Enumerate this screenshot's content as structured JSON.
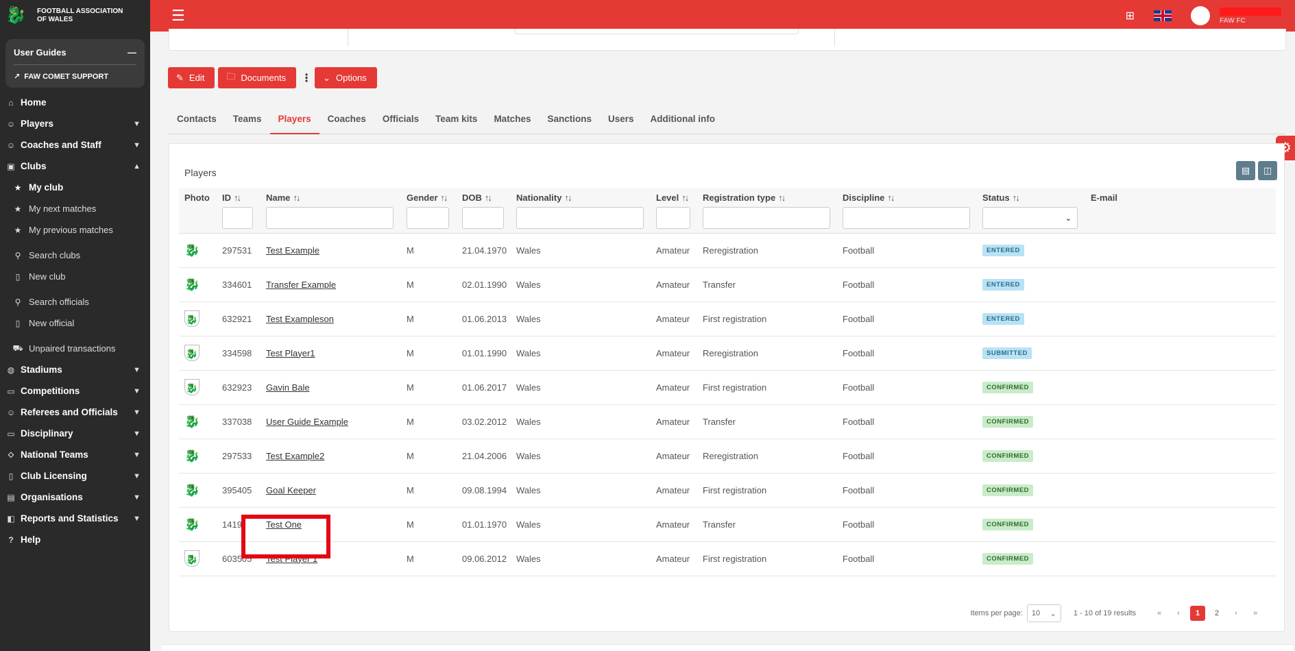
{
  "brand": {
    "name": "FOOTBALL ASSOCIATION OF WALES"
  },
  "guides": {
    "title": "User Guides",
    "collapse": "—",
    "support": "FAW COMET SUPPORT"
  },
  "nav": {
    "home": "Home",
    "players": "Players",
    "coaches": "Coaches and Staff",
    "clubs": "Clubs",
    "my_club": "My club",
    "next_matches": "My next matches",
    "previous_matches": "My previous matches",
    "search_clubs": "Search clubs",
    "new_club": "New club",
    "search_officials": "Search officials",
    "new_official": "New official",
    "unpaired": "Unpaired transactions",
    "stadiums": "Stadiums",
    "competitions": "Competitions",
    "referees": "Referees and Officials",
    "disciplinary": "Disciplinary",
    "national_teams": "National Teams",
    "club_licensing": "Club Licensing",
    "organisations": "Organisations",
    "reports": "Reports and Statistics",
    "help": "Help"
  },
  "user": {
    "club": "FAW FC"
  },
  "actions": {
    "edit": "Edit",
    "documents": "Documents",
    "options": "Options"
  },
  "tabs": [
    "Contacts",
    "Teams",
    "Players",
    "Coaches",
    "Officials",
    "Team kits",
    "Matches",
    "Sanctions",
    "Users",
    "Additional info"
  ],
  "card": {
    "title": "Players"
  },
  "columns": {
    "photo": "Photo",
    "id": "ID",
    "name": "Name",
    "gender": "Gender",
    "dob": "DOB",
    "nationality": "Nationality",
    "level": "Level",
    "registration_type": "Registration type",
    "discipline": "Discipline",
    "status": "Status",
    "email": "E-mail"
  },
  "rows": [
    {
      "photo": "dragon",
      "id": "297531",
      "name": "Test Example",
      "gender": "M",
      "dob": "21.04.1970",
      "nationality": "Wales",
      "level": "Amateur",
      "registration_type": "Reregistration",
      "discipline": "Football",
      "status": "ENTERED",
      "status_class": "entered"
    },
    {
      "photo": "dragon",
      "id": "334601",
      "name": "Transfer Example",
      "gender": "M",
      "dob": "02.01.1990",
      "nationality": "Wales",
      "level": "Amateur",
      "registration_type": "Transfer",
      "discipline": "Football",
      "status": "ENTERED",
      "status_class": "entered"
    },
    {
      "photo": "shield",
      "id": "632921",
      "name": "Test Exampleson",
      "gender": "M",
      "dob": "01.06.2013",
      "nationality": "Wales",
      "level": "Amateur",
      "registration_type": "First registration",
      "discipline": "Football",
      "status": "ENTERED",
      "status_class": "entered"
    },
    {
      "photo": "shield",
      "id": "334598",
      "name": "Test Player1",
      "gender": "M",
      "dob": "01.01.1990",
      "nationality": "Wales",
      "level": "Amateur",
      "registration_type": "Reregistration",
      "discipline": "Football",
      "status": "SUBMITTED",
      "status_class": "submitted"
    },
    {
      "photo": "shield",
      "id": "632923",
      "name": "Gavin Bale",
      "gender": "M",
      "dob": "01.06.2017",
      "nationality": "Wales",
      "level": "Amateur",
      "registration_type": "First registration",
      "discipline": "Football",
      "status": "CONFIRMED",
      "status_class": "confirmed"
    },
    {
      "photo": "dragon",
      "id": "337038",
      "name": "User Guide Example",
      "gender": "M",
      "dob": "03.02.2012",
      "nationality": "Wales",
      "level": "Amateur",
      "registration_type": "Transfer",
      "discipline": "Football",
      "status": "CONFIRMED",
      "status_class": "confirmed"
    },
    {
      "photo": "dragon",
      "id": "297533",
      "name": "Test Example2",
      "gender": "M",
      "dob": "21.04.2006",
      "nationality": "Wales",
      "level": "Amateur",
      "registration_type": "Reregistration",
      "discipline": "Football",
      "status": "CONFIRMED",
      "status_class": "confirmed"
    },
    {
      "photo": "dragon",
      "id": "395405",
      "name": "Goal Keeper",
      "gender": "M",
      "dob": "09.08.1994",
      "nationality": "Wales",
      "level": "Amateur",
      "registration_type": "First registration",
      "discipline": "Football",
      "status": "CONFIRMED",
      "status_class": "confirmed"
    },
    {
      "photo": "dragon",
      "id": "1419",
      "name": "Test One",
      "gender": "M",
      "dob": "01.01.1970",
      "nationality": "Wales",
      "level": "Amateur",
      "registration_type": "Transfer",
      "discipline": "Football",
      "status": "CONFIRMED",
      "status_class": "confirmed"
    },
    {
      "photo": "shield",
      "id": "603505",
      "name": "Test Player 1",
      "gender": "M",
      "dob": "09.06.2012",
      "nationality": "Wales",
      "level": "Amateur",
      "registration_type": "First registration",
      "discipline": "Football",
      "status": "CONFIRMED",
      "status_class": "confirmed"
    }
  ],
  "pager": {
    "items_label": "Items per page:",
    "per_page": "10",
    "range": "1 - 10 of 19 results",
    "pages": [
      "1",
      "2"
    ],
    "current": "1"
  },
  "colors": {
    "accent": "#e53935",
    "sidebar": "#2a2a2a",
    "highlight": "#e30613"
  }
}
